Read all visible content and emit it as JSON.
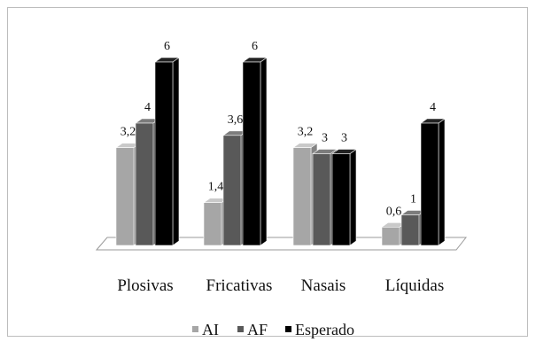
{
  "chart_data": {
    "type": "bar",
    "categories": [
      "Plosivas",
      "Fricativas",
      "Nasais",
      "Líquidas"
    ],
    "series": [
      {
        "name": "AI",
        "values": [
          3.2,
          1.4,
          3.2,
          0.6
        ],
        "labels": [
          "3,2",
          "1,4",
          "3,2",
          "0,6"
        ],
        "color": "#a6a6a6"
      },
      {
        "name": "AF",
        "values": [
          4,
          3.6,
          3,
          1
        ],
        "labels": [
          "4",
          "3,6",
          "3",
          "1"
        ],
        "color": "#595959"
      },
      {
        "name": "Esperado",
        "values": [
          6,
          6,
          3,
          4
        ],
        "labels": [
          "6",
          "6",
          "3",
          "4"
        ],
        "color": "#000000"
      }
    ],
    "ylim": [
      0,
      6
    ],
    "three_d": true,
    "legend_position": "bottom",
    "grid": false
  }
}
